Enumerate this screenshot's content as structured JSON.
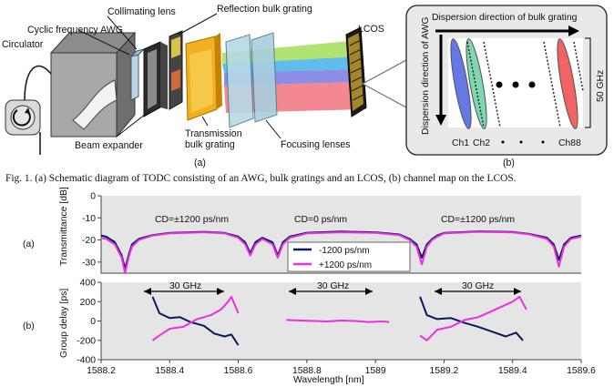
{
  "figure_a": {
    "labels": {
      "circulator": "Circulator",
      "awg": "Cyclic frequency AWG",
      "collimating_lens": "Collimating lens",
      "reflection_grating": "Reflection bulk grating",
      "lcos": "LCOS",
      "beam_expander": "Beam expander",
      "transmission_grating_1": "Transmission",
      "transmission_grating_2": "bulk grating",
      "focusing_lenses": "Focusing lenses",
      "panel_tag": "(a)"
    }
  },
  "figure_b": {
    "labels": {
      "dispersion_horizontal": "Dispersion direction of bulk grating",
      "dispersion_vertical": "Dispersion direction of AWG",
      "bandwidth": "50 GHz",
      "ch1": "Ch1",
      "ch2": "Ch2",
      "ch88": "Ch88",
      "panel_tag": "(b)"
    }
  },
  "caption": "Fig. 1. (a) Schematic diagram of TODC consisting of an AWG, bulk gratings and an LCOS, (b) channel map on the LCOS.",
  "chart_data": [
    {
      "type": "line",
      "panel": "(a)",
      "ylabel": "Transmittance [dB]",
      "ylim": [
        -35,
        0
      ],
      "yticks": [
        0,
        -10,
        -20,
        -30
      ],
      "xlim": [
        1588.2,
        1589.6
      ],
      "grid": false,
      "annotations": [
        "CD=±1200 ps/nm",
        "CD=0 ps/nm",
        "CD=±1200 ps/nm"
      ],
      "legend": {
        "placement": "center",
        "entries": [
          "-1200 ps/nm",
          "+1200 ps/nm"
        ]
      },
      "series": [
        {
          "name": "-1200 ps/nm",
          "color": "#0a1a5c",
          "x": [
            1588.2,
            1588.215,
            1588.24,
            1588.26,
            1588.27,
            1588.28,
            1588.29,
            1588.31,
            1588.35,
            1588.4,
            1588.5,
            1588.56,
            1588.6,
            1588.62,
            1588.635,
            1588.65,
            1588.67,
            1588.7,
            1588.715,
            1588.73,
            1588.75,
            1588.8,
            1588.9,
            1589.0,
            1589.07,
            1589.1,
            1589.12,
            1589.135,
            1589.15,
            1589.165,
            1589.18,
            1589.2,
            1589.3,
            1589.4,
            1589.45,
            1589.5,
            1589.52,
            1589.535,
            1589.55,
            1589.57,
            1589.6
          ],
          "y": [
            -18,
            -18.5,
            -21,
            -27,
            -33,
            -27,
            -22,
            -19.5,
            -17.8,
            -16.8,
            -16.3,
            -16.8,
            -18.5,
            -21,
            -26,
            -21,
            -19,
            -21,
            -27,
            -21,
            -18.5,
            -16.7,
            -16.2,
            -16.5,
            -17.5,
            -19.5,
            -22,
            -28,
            -22,
            -19.5,
            -18,
            -16.8,
            -16.1,
            -16.4,
            -17.3,
            -19,
            -22,
            -29,
            -22,
            -19,
            -18
          ]
        },
        {
          "name": "+1200 ps/nm",
          "color": "#e831e0",
          "x": [
            1588.2,
            1588.215,
            1588.24,
            1588.26,
            1588.27,
            1588.28,
            1588.29,
            1588.31,
            1588.35,
            1588.4,
            1588.5,
            1588.56,
            1588.6,
            1588.62,
            1588.635,
            1588.65,
            1588.67,
            1588.7,
            1588.715,
            1588.73,
            1588.75,
            1588.8,
            1588.9,
            1589.0,
            1589.07,
            1589.1,
            1589.12,
            1589.135,
            1589.15,
            1589.165,
            1589.18,
            1589.2,
            1589.3,
            1589.4,
            1589.45,
            1589.5,
            1589.52,
            1589.535,
            1589.55,
            1589.57,
            1589.6
          ],
          "y": [
            -19,
            -19.5,
            -22,
            -28,
            -35,
            -28,
            -23,
            -20,
            -18,
            -17,
            -16.5,
            -17,
            -19,
            -22,
            -27,
            -22,
            -19.5,
            -22,
            -28,
            -22,
            -19,
            -17,
            -16.5,
            -16.8,
            -17.8,
            -20,
            -23,
            -31,
            -23,
            -20,
            -18.5,
            -17,
            -16.3,
            -16.6,
            -17.5,
            -19.5,
            -23,
            -32,
            -23,
            -19.5,
            -18.5
          ]
        }
      ]
    },
    {
      "type": "line",
      "panel": "(b)",
      "ylabel": "Group delay [ps]",
      "xlabel": "Wavelength [nm]",
      "ylim": [
        -400,
        400
      ],
      "yticks": [
        400,
        200,
        0,
        -200,
        -400
      ],
      "xlim": [
        1588.2,
        1589.6
      ],
      "xticks": [
        1588.2,
        1588.4,
        1588.6,
        1588.8,
        1589,
        1589.2,
        1589.4,
        1589.6
      ],
      "grid": false,
      "annotations": [
        "30 GHz",
        "30 GHz",
        "30 GHz"
      ],
      "series": [
        {
          "name": "-1200 ps/nm seg1",
          "color": "#0a1a5c",
          "x": [
            1588.35,
            1588.37,
            1588.4,
            1588.43,
            1588.46,
            1588.5,
            1588.53,
            1588.56,
            1588.58,
            1588.6
          ],
          "y": [
            250,
            80,
            30,
            40,
            -10,
            -50,
            -130,
            -160,
            -140,
            -250
          ]
        },
        {
          "name": "-1200 ps/nm seg2",
          "color": "#0a1a5c",
          "x": [
            1589.13,
            1589.15,
            1589.18,
            1589.22,
            1589.26,
            1589.3,
            1589.34,
            1589.38,
            1589.41,
            1589.43
          ],
          "y": [
            250,
            60,
            20,
            30,
            -20,
            -60,
            -110,
            -160,
            -120,
            -200
          ]
        },
        {
          "name": "+1200 ps/nm seg1",
          "color": "#e831e0",
          "x": [
            1588.35,
            1588.37,
            1588.4,
            1588.44,
            1588.48,
            1588.52,
            1588.55,
            1588.57,
            1588.58,
            1588.6
          ],
          "y": [
            -200,
            -150,
            -80,
            -60,
            20,
            60,
            120,
            200,
            250,
            80
          ]
        },
        {
          "name": "+1200 ps/nm seg2",
          "color": "#e831e0",
          "x": [
            1589.13,
            1589.15,
            1589.18,
            1589.22,
            1589.26,
            1589.3,
            1589.35,
            1589.4,
            1589.42,
            1589.44
          ],
          "y": [
            -150,
            -200,
            -90,
            -60,
            10,
            40,
            120,
            200,
            250,
            120
          ]
        },
        {
          "name": "CD=0 seg",
          "color": "#e831e0",
          "x": [
            1588.74,
            1588.78,
            1588.82,
            1588.86,
            1588.9,
            1588.94,
            1588.98,
            1589.02,
            1589.04
          ],
          "y": [
            10,
            5,
            0,
            -5,
            5,
            0,
            -10,
            -5,
            -10
          ]
        }
      ]
    }
  ]
}
